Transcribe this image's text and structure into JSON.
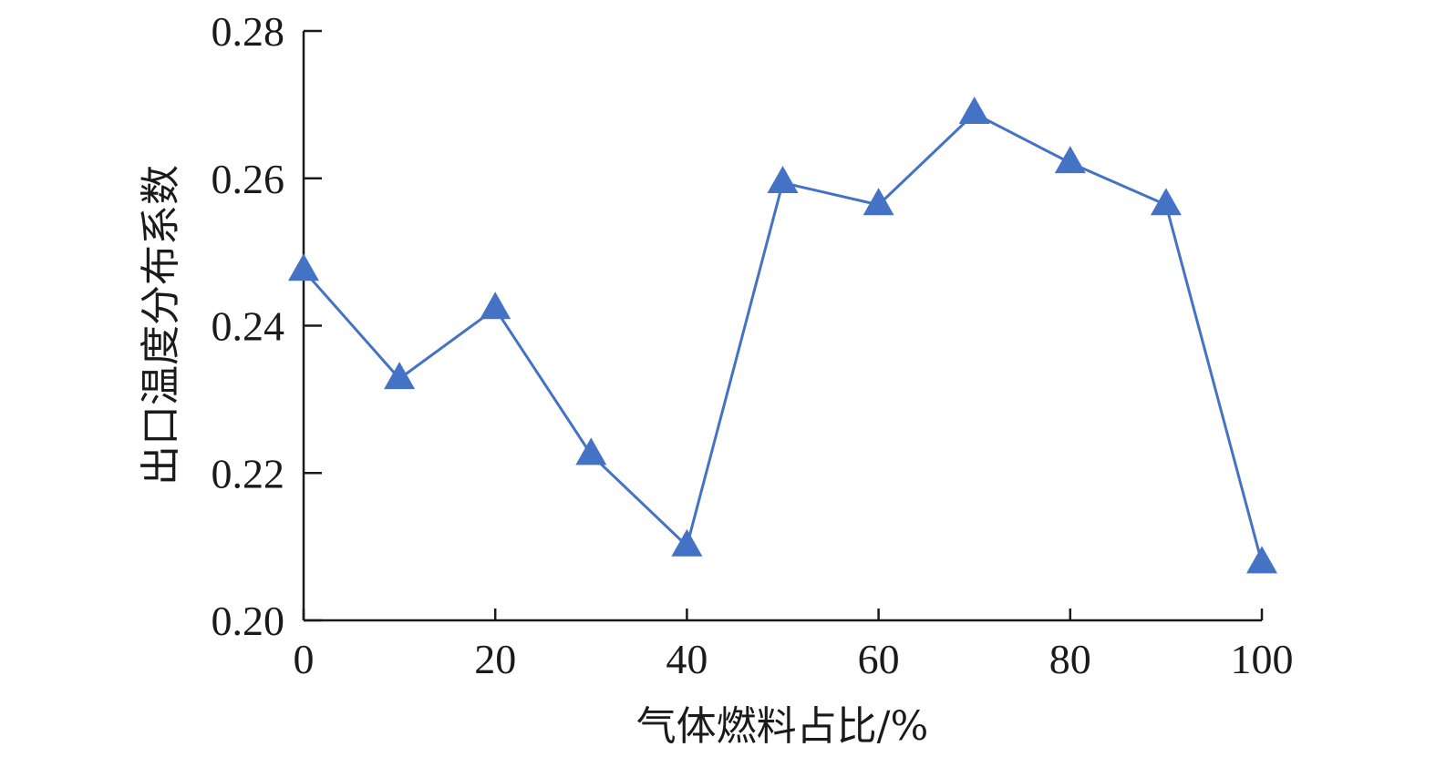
{
  "chart_data": {
    "type": "line",
    "title": "",
    "xlabel": "气体燃料占比/%",
    "ylabel": "出口温度分布系数",
    "xlim": [
      0,
      100
    ],
    "ylim": [
      0.2,
      0.28
    ],
    "xticks": [
      "0",
      "20",
      "40",
      "60",
      "80",
      "100"
    ],
    "xtick_values": [
      0,
      20,
      40,
      60,
      80,
      100
    ],
    "yticks": [
      "0.20",
      "0.22",
      "0.24",
      "0.26",
      "0.28"
    ],
    "ytick_values": [
      0.2,
      0.22,
      0.24,
      0.26,
      0.28
    ],
    "grid": false,
    "legend": "none",
    "series": [
      {
        "marker": "triangle",
        "color": "#4472C4",
        "x": [
          0,
          10,
          20,
          30,
          40,
          50,
          60,
          70,
          80,
          90,
          100
        ],
        "y": [
          0.2475,
          0.2328,
          0.2423,
          0.2225,
          0.2101,
          0.2594,
          0.2564,
          0.2688,
          0.2621,
          0.2564,
          0.2078
        ]
      }
    ]
  }
}
